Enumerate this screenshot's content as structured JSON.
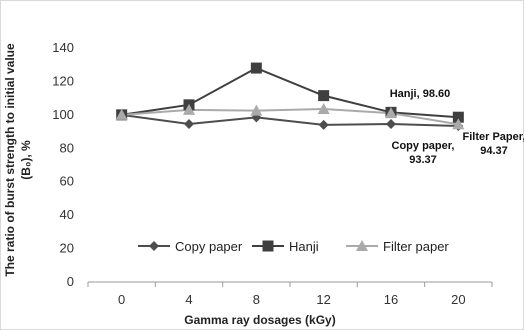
{
  "chart_data": {
    "type": "line",
    "x": [
      0,
      4,
      8,
      12,
      16,
      20
    ],
    "xlabel": "Gamma ray dosages (kGy)",
    "ylabel_line1": "The ratio of burst strength to initial value",
    "ylabel_line2": "(B₀), %",
    "ylim": [
      0,
      140
    ],
    "yticks": [
      0,
      20,
      40,
      60,
      80,
      100,
      120,
      140
    ],
    "grid": false,
    "legend_position": "bottom-inside",
    "series": [
      {
        "name": "Copy paper",
        "values": [
          100,
          94.5,
          98.5,
          94,
          94.5,
          93.37
        ],
        "color": "#4d4d4d",
        "marker": "diamond"
      },
      {
        "name": "Hanji",
        "values": [
          100,
          106,
          128,
          111.5,
          101.5,
          98.6
        ],
        "color": "#3f3f3f",
        "marker": "square"
      },
      {
        "name": "Filter paper",
        "values": [
          100,
          103,
          102.5,
          103.5,
          101,
          94.37
        ],
        "color": "#aaaaaa",
        "marker": "triangle"
      }
    ],
    "annotations": [
      {
        "lines": [
          "Hanji,  98.60"
        ],
        "series": "Hanji"
      },
      {
        "lines": [
          "Copy paper,",
          "93.37"
        ],
        "series": "Copy paper"
      },
      {
        "lines": [
          "Filter Paper,",
          "94.37"
        ],
        "series": "Filter paper"
      }
    ]
  }
}
